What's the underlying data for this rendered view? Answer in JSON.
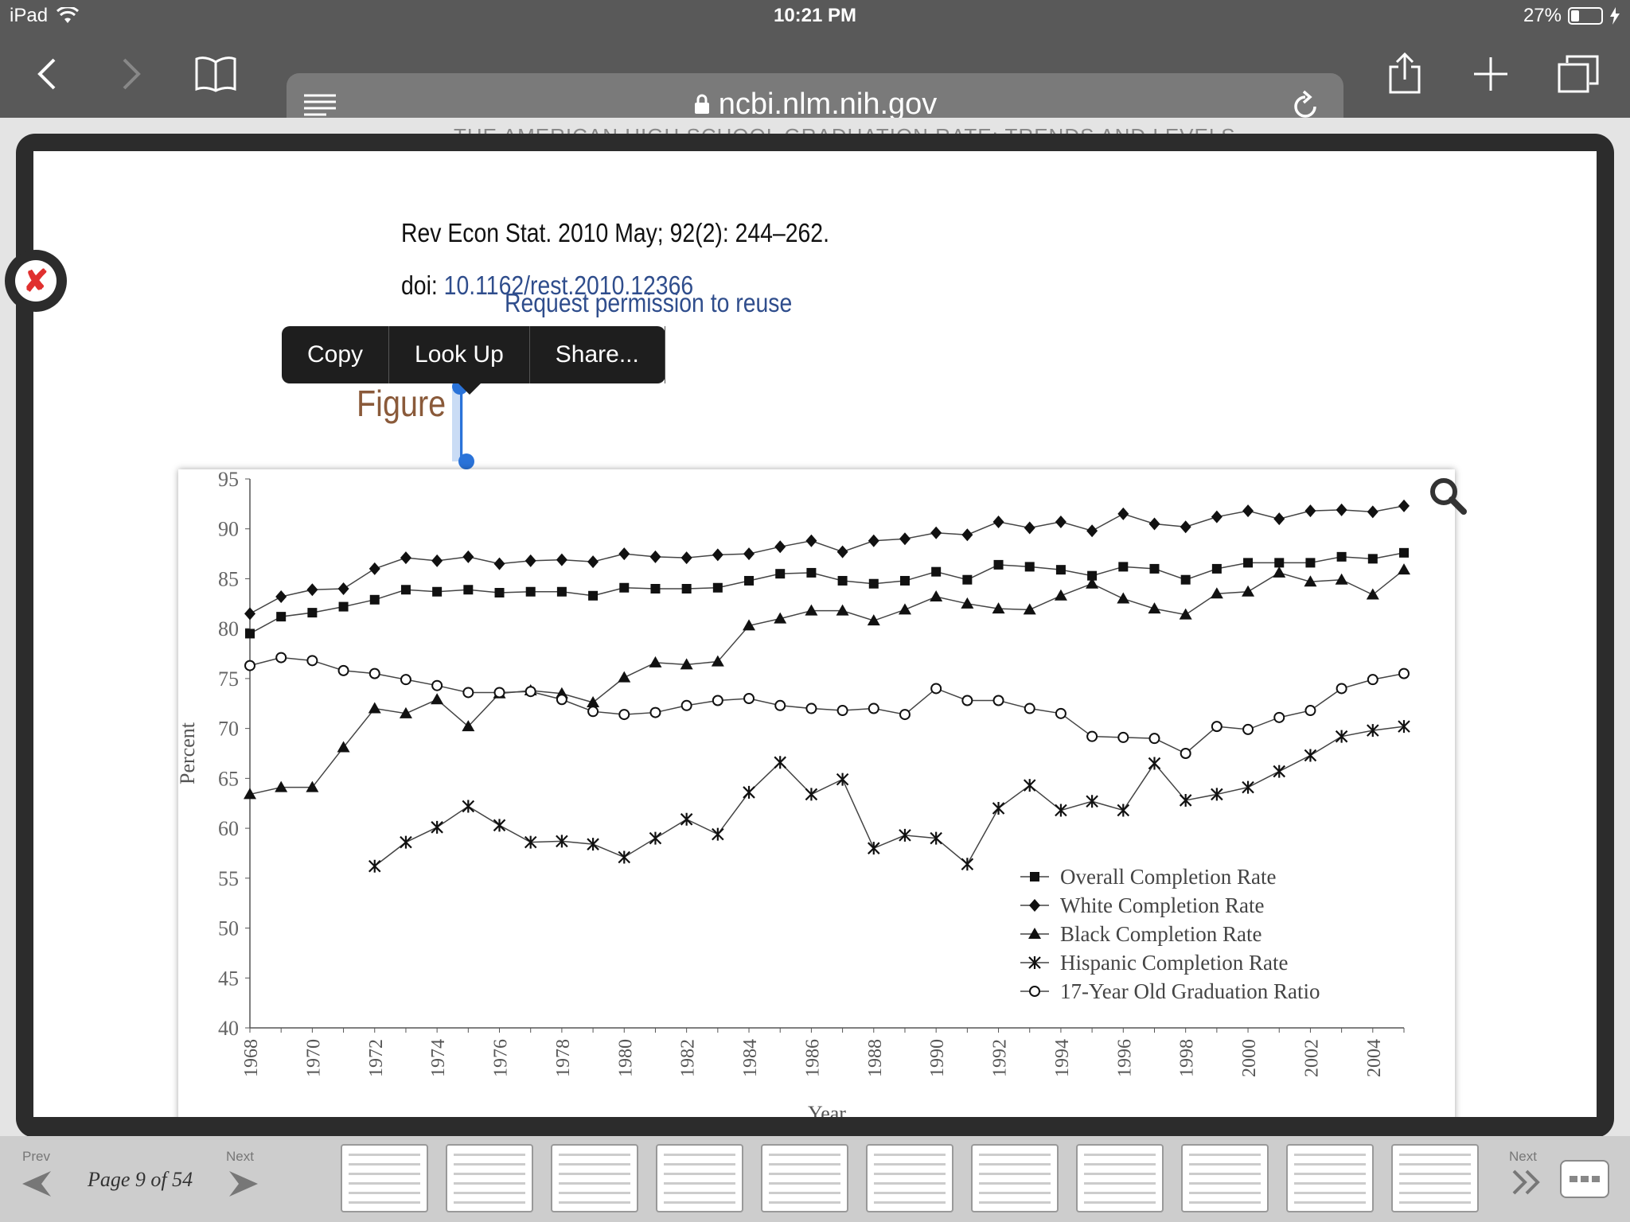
{
  "status_bar": {
    "device": "iPad",
    "time": "10:21 PM",
    "battery": "27%",
    "battery_level": 0.27
  },
  "browser": {
    "url": "ncbi.nlm.nih.gov"
  },
  "page": {
    "header_title": "THE AMERICAN HIGH SCHOOL GRADUATION RATE: TRENDS AND LEVELS",
    "citation": "Rev Econ Stat. 2010 May; 92(2): 244–262.",
    "doi_label": "doi:",
    "doi_value": "10.1162/rest.2010.12366",
    "permission_link": "Request permission to reuse",
    "figure_title": "Figure"
  },
  "context_menu": {
    "items": [
      "Copy",
      "Look Up",
      "Share..."
    ]
  },
  "chart_data": {
    "type": "line",
    "xlabel": "Year",
    "ylabel": "Percent",
    "xlim": [
      1968,
      2005
    ],
    "ylim": [
      40,
      95
    ],
    "yticks": [
      40,
      45,
      50,
      55,
      60,
      65,
      70,
      75,
      80,
      85,
      90,
      95
    ],
    "xticks": [
      1968,
      1970,
      1972,
      1974,
      1976,
      1978,
      1980,
      1982,
      1984,
      1986,
      1988,
      1990,
      1992,
      1994,
      1996,
      1998,
      2000,
      2002,
      2004
    ],
    "legend_position": "bottom-right",
    "series": [
      {
        "name": "Overall Completion Rate",
        "marker": "square",
        "x": [
          1968,
          1969,
          1970,
          1971,
          1972,
          1973,
          1974,
          1975,
          1976,
          1977,
          1978,
          1979,
          1980,
          1981,
          1982,
          1983,
          1984,
          1985,
          1986,
          1987,
          1988,
          1989,
          1990,
          1991,
          1992,
          1993,
          1994,
          1995,
          1996,
          1997,
          1998,
          1999,
          2000,
          2001,
          2002,
          2003,
          2004,
          2005
        ],
        "values": [
          79.5,
          81.2,
          81.6,
          82.2,
          82.9,
          83.9,
          83.7,
          83.9,
          83.6,
          83.7,
          83.7,
          83.3,
          84.1,
          84.0,
          84.0,
          84.1,
          84.8,
          85.5,
          85.6,
          84.8,
          84.5,
          84.8,
          85.7,
          84.9,
          86.4,
          86.2,
          85.9,
          85.3,
          86.2,
          86.0,
          84.9,
          86.0,
          86.6,
          86.6,
          86.6,
          87.2,
          87.0,
          87.6
        ]
      },
      {
        "name": "White Completion Rate",
        "marker": "diamond",
        "x": [
          1968,
          1969,
          1970,
          1971,
          1972,
          1973,
          1974,
          1975,
          1976,
          1977,
          1978,
          1979,
          1980,
          1981,
          1982,
          1983,
          1984,
          1985,
          1986,
          1987,
          1988,
          1989,
          1990,
          1991,
          1992,
          1993,
          1994,
          1995,
          1996,
          1997,
          1998,
          1999,
          2000,
          2001,
          2002,
          2003,
          2004,
          2005
        ],
        "values": [
          81.5,
          83.2,
          83.9,
          84.0,
          86.0,
          87.1,
          86.8,
          87.2,
          86.5,
          86.8,
          86.9,
          86.7,
          87.5,
          87.2,
          87.1,
          87.4,
          87.5,
          88.2,
          88.8,
          87.7,
          88.8,
          89.0,
          89.6,
          89.4,
          90.7,
          90.1,
          90.7,
          89.8,
          91.5,
          90.5,
          90.2,
          91.2,
          91.8,
          91.0,
          91.8,
          91.9,
          91.7,
          92.3
        ]
      },
      {
        "name": "Black Completion Rate",
        "marker": "triangle",
        "x": [
          1968,
          1969,
          1970,
          1971,
          1972,
          1973,
          1974,
          1975,
          1976,
          1977,
          1978,
          1979,
          1980,
          1981,
          1982,
          1983,
          1984,
          1985,
          1986,
          1987,
          1988,
          1989,
          1990,
          1991,
          1992,
          1993,
          1994,
          1995,
          1996,
          1997,
          1998,
          1999,
          2000,
          2001,
          2002,
          2003,
          2004,
          2005
        ],
        "values": [
          63.4,
          64.1,
          64.1,
          68.1,
          72.0,
          71.5,
          72.9,
          70.2,
          73.5,
          73.8,
          73.5,
          72.6,
          75.1,
          76.6,
          76.4,
          76.7,
          80.3,
          81.0,
          81.8,
          81.8,
          80.8,
          81.9,
          83.2,
          82.5,
          82.0,
          81.9,
          83.3,
          84.5,
          83.0,
          82.0,
          81.4,
          83.5,
          83.7,
          85.6,
          84.7,
          84.9,
          83.4,
          85.9
        ]
      },
      {
        "name": "Hispanic Completion Rate",
        "marker": "asterisk",
        "x": [
          1972,
          1973,
          1974,
          1975,
          1976,
          1977,
          1978,
          1979,
          1980,
          1981,
          1982,
          1983,
          1984,
          1985,
          1986,
          1987,
          1988,
          1989,
          1990,
          1991,
          1992,
          1993,
          1994,
          1995,
          1996,
          1997,
          1998,
          1999,
          2000,
          2001,
          2002,
          2003,
          2004,
          2005
        ],
        "values": [
          56.2,
          58.6,
          60.1,
          62.2,
          60.3,
          58.6,
          58.7,
          58.4,
          57.1,
          59.0,
          60.9,
          59.4,
          63.6,
          66.6,
          63.4,
          64.9,
          58.0,
          59.3,
          59.0,
          56.4,
          62.0,
          64.3,
          61.8,
          62.7,
          61.8,
          66.5,
          62.8,
          63.4,
          64.1,
          65.7,
          67.3,
          69.2,
          69.8,
          70.2
        ]
      },
      {
        "name": "17-Year Old Graduation Ratio",
        "marker": "circle",
        "x": [
          1968,
          1969,
          1970,
          1971,
          1972,
          1973,
          1974,
          1975,
          1976,
          1977,
          1978,
          1979,
          1980,
          1981,
          1982,
          1983,
          1984,
          1985,
          1986,
          1987,
          1988,
          1989,
          1990,
          1991,
          1992,
          1993,
          1994,
          1995,
          1996,
          1997,
          1998,
          1999,
          2000,
          2001,
          2002,
          2003,
          2004,
          2005
        ],
        "values": [
          76.3,
          77.1,
          76.8,
          75.8,
          75.5,
          74.9,
          74.3,
          73.6,
          73.6,
          73.7,
          72.9,
          71.7,
          71.4,
          71.6,
          72.3,
          72.8,
          73.0,
          72.3,
          72.0,
          71.8,
          72.0,
          71.4,
          74.0,
          72.8,
          72.8,
          72.0,
          71.5,
          69.2,
          69.1,
          69.0,
          67.5,
          70.2,
          69.9,
          71.1,
          71.8,
          74.0,
          74.9,
          75.5
        ]
      }
    ]
  },
  "bottom_bar": {
    "prev_label": "Prev",
    "next_label": "Next",
    "page_indicator": "Page 9 of 54",
    "thumbnails_count": 11
  }
}
